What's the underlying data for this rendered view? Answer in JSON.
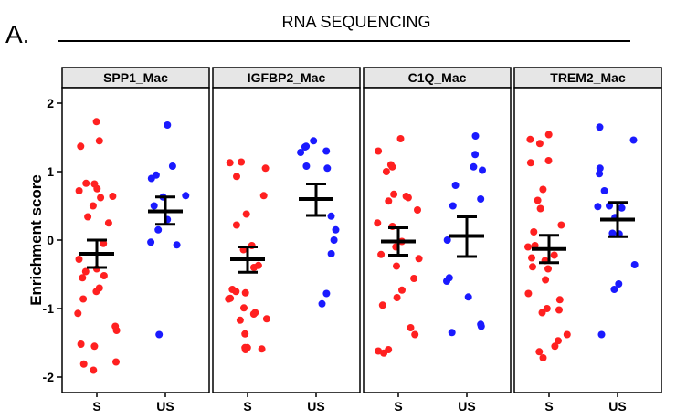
{
  "header": {
    "panel_label": "A.",
    "title": "RNA SEQUENCING"
  },
  "chart_data": {
    "type": "scatter",
    "ylabel": "Enrichment score",
    "ylim": [
      -2.2,
      2.2
    ],
    "yticks": [
      -2,
      -1,
      0,
      1,
      2
    ],
    "groups": [
      "S",
      "US"
    ],
    "colors": {
      "S": "#ff2020",
      "US": "#1a1aff",
      "summary": "#000000"
    },
    "panels": [
      {
        "name": "SPP1_Mac",
        "S": {
          "mean": -0.2,
          "upper": 0.0,
          "lower": -0.4,
          "values": [
            1.73,
            1.45,
            1.37,
            0.83,
            0.82,
            0.75,
            0.72,
            0.64,
            0.62,
            0.5,
            0.34,
            0.25,
            -0.05,
            -0.28,
            -0.42,
            -0.46,
            -0.52,
            -0.55,
            -0.7,
            -0.75,
            -0.86,
            -1.07,
            -1.26,
            -1.32,
            -1.52,
            -1.55,
            -1.78,
            -1.81,
            -1.9
          ]
        },
        "US": {
          "mean": 0.42,
          "upper": 0.63,
          "lower": 0.23,
          "values": [
            1.68,
            1.08,
            0.95,
            0.9,
            0.65,
            0.63,
            0.5,
            0.3,
            0.15,
            -0.03,
            -0.07,
            -1.38
          ]
        }
      },
      {
        "name": "IGFBP2_Mac",
        "S": {
          "mean": -0.28,
          "upper": -0.1,
          "lower": -0.47,
          "values": [
            1.14,
            1.13,
            1.05,
            0.93,
            0.65,
            0.38,
            0.22,
            -0.08,
            -0.14,
            -0.37,
            -0.4,
            -0.72,
            -0.75,
            -0.77,
            -0.85,
            -0.86,
            -0.99,
            -1.06,
            -1.08,
            -1.15,
            -1.17,
            -1.37,
            -1.57,
            -1.57,
            -1.59,
            -1.6
          ]
        },
        "US": {
          "mean": 0.6,
          "upper": 0.82,
          "lower": 0.36,
          "values": [
            1.45,
            1.37,
            1.36,
            1.3,
            1.28,
            1.08,
            1.05,
            0.35,
            0.15,
            0.0,
            -0.2,
            -0.78,
            -0.93
          ]
        }
      },
      {
        "name": "C1Q_Mac",
        "S": {
          "mean": -0.02,
          "upper": 0.18,
          "lower": -0.22,
          "values": [
            1.48,
            1.3,
            1.1,
            1.07,
            1.0,
            0.67,
            0.64,
            0.62,
            0.57,
            0.44,
            0.25,
            0.2,
            -0.02,
            -0.1,
            -0.21,
            -0.27,
            -0.38,
            -0.56,
            -0.73,
            -0.84,
            -0.95,
            -1.28,
            -1.38,
            -1.6,
            -1.62,
            -1.65
          ]
        },
        "US": {
          "mean": 0.06,
          "upper": 0.34,
          "lower": -0.24,
          "values": [
            1.52,
            1.25,
            1.07,
            1.02,
            0.8,
            0.6,
            0.5,
            0.0,
            -0.55,
            -0.6,
            -0.83,
            -1.23,
            -1.26,
            -1.35
          ]
        }
      },
      {
        "name": "TREM2_Mac",
        "S": {
          "mean": -0.13,
          "upper": 0.07,
          "lower": -0.33,
          "values": [
            1.54,
            1.47,
            1.41,
            1.16,
            1.13,
            0.74,
            0.58,
            0.46,
            0.22,
            0.12,
            -0.08,
            -0.1,
            -0.22,
            -0.26,
            -0.3,
            -0.39,
            -0.42,
            -0.58,
            -0.78,
            -0.87,
            -1.0,
            -1.02,
            -1.06,
            -1.38,
            -1.47,
            -1.55,
            -1.63,
            -1.72
          ]
        },
        "US": {
          "mean": 0.3,
          "upper": 0.55,
          "lower": 0.05,
          "values": [
            1.65,
            1.46,
            1.05,
            0.97,
            0.72,
            0.5,
            0.49,
            0.47,
            0.33,
            0.1,
            0.09,
            -0.36,
            -0.64,
            -0.72,
            -1.38
          ]
        }
      }
    ]
  }
}
